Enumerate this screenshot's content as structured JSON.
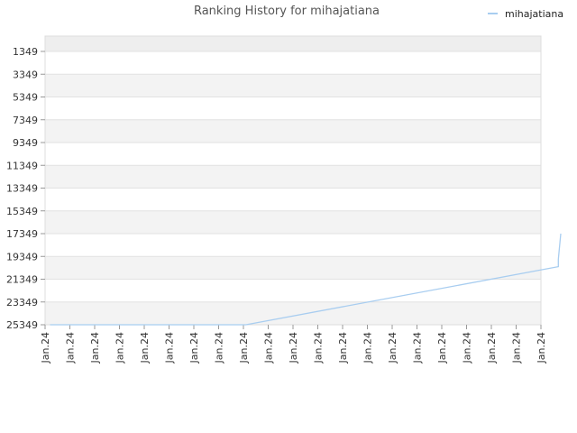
{
  "chart_data": {
    "type": "line",
    "title": "Ranking History for mihajatiana",
    "xlabel": "",
    "ylabel": "",
    "y_reversed": true,
    "ylim": [
      1349,
      25349
    ],
    "y_axis_top_label_value": 1349,
    "yticks": [
      1349,
      3349,
      5349,
      7349,
      9349,
      11349,
      13349,
      15349,
      17349,
      19349,
      21349,
      23349,
      25349
    ],
    "ytick_labels": [
      "1349",
      "3349",
      "5349",
      "7349",
      "9349",
      "11349",
      "13349",
      "15349",
      "17349",
      "19349",
      "21349",
      "23349",
      "25349"
    ],
    "xtick_labels": [
      "Jan.24",
      "Jan.24",
      "Jan.24",
      "Jan.24",
      "Jan.24",
      "Jan.24",
      "Jan.24",
      "Jan.24",
      "Jan.24",
      "Jan.24",
      "Jan.24",
      "Jan.24",
      "Jan.24",
      "Jan.24",
      "Jan.24",
      "Jan.24",
      "Jan.24",
      "Jan.24",
      "Jan.24",
      "Jan.24",
      "Jan.24"
    ],
    "grid": true,
    "legend_position": "top-right",
    "series": [
      {
        "name": "mihajatiana",
        "color": "#a8cdf0",
        "points": [
          {
            "x": 0.2,
            "y": 25349
          },
          {
            "x": 8.1,
            "y": 25349
          },
          {
            "x": 20.7,
            "y": 20250
          },
          {
            "x": 20.7,
            "y": 19600
          },
          {
            "x": 20.8,
            "y": 17349
          }
        ]
      }
    ]
  }
}
